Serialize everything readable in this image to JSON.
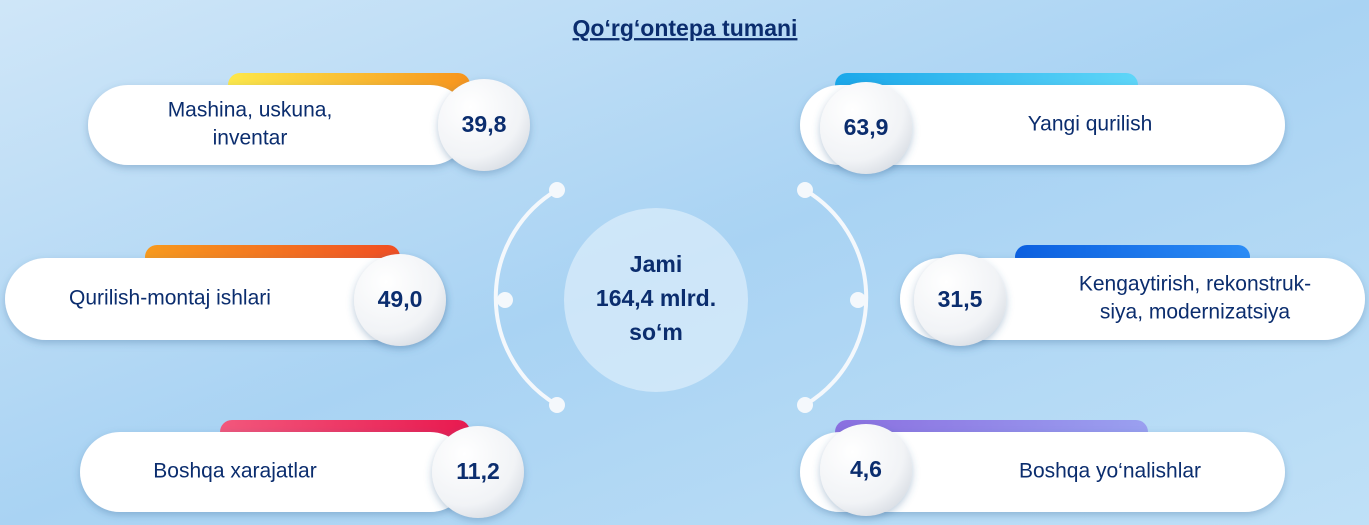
{
  "title": "Qo‘rg‘ontepa tumani",
  "center": {
    "lines": [
      "Jami",
      "164,4 mlrd.",
      "so‘m"
    ]
  },
  "items": [
    {
      "label": [
        "Mashina, uskuna,",
        "inventar"
      ],
      "value": "39,8"
    },
    {
      "label": [
        "Qurilish-montaj ishlari"
      ],
      "value": "49,0"
    },
    {
      "label": [
        "Boshqa xarajatlar"
      ],
      "value": "11,2"
    },
    {
      "label": [
        "Yangi qurilish"
      ],
      "value": "63,9"
    },
    {
      "label": [
        "Kengaytirish, rekonstruk-",
        "siya, modernizatsiya"
      ],
      "value": "31,5"
    },
    {
      "label": [
        "Boshqa yo‘nalishlar"
      ],
      "value": "4,6"
    }
  ]
}
